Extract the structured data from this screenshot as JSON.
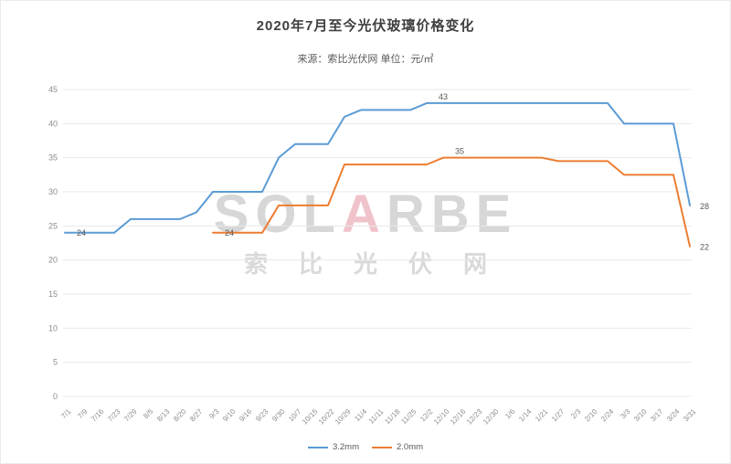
{
  "header": {
    "title": "2020年7月至今光伏玻璃价格变化",
    "subtitle": "来源：索比光伏网 单位：元/㎡"
  },
  "watermark": {
    "brand_gray_left": "SOL",
    "brand_accent": "A",
    "brand_gray_right": "RBE",
    "subbrand": "索比光伏网"
  },
  "chart_data": {
    "type": "line",
    "title": "2020年7月至今光伏玻璃价格变化",
    "source": "来源：索比光伏网",
    "unit": "元/㎡",
    "categories": [
      "7/1",
      "7/9",
      "7/16",
      "7/23",
      "7/29",
      "8/5",
      "8/13",
      "8/20",
      "8/27",
      "9/3",
      "9/10",
      "9/16",
      "9/23",
      "9/30",
      "10/7",
      "10/15",
      "10/22",
      "10/29",
      "11/4",
      "11/11",
      "11/18",
      "11/25",
      "12/2",
      "12/10",
      "12/16",
      "12/23",
      "12/30",
      "1/6",
      "1/14",
      "1/21",
      "1/27",
      "2/3",
      "2/10",
      "2/24",
      "3/3",
      "3/10",
      "3/17",
      "3/24",
      "3/31"
    ],
    "series": [
      {
        "name": "3.2mm",
        "color": "#5B9BD5",
        "values": [
          24,
          24,
          24,
          24,
          26,
          26,
          26,
          26,
          27,
          30,
          30,
          30,
          30,
          35,
          37,
          37,
          37,
          41,
          42,
          42,
          42,
          42,
          43,
          43,
          43,
          43,
          43,
          43,
          43,
          43,
          43,
          43,
          43,
          43,
          40,
          40,
          40,
          40,
          28
        ]
      },
      {
        "name": "2.0mm",
        "color": "#ED7D31",
        "values": [
          null,
          null,
          null,
          null,
          null,
          null,
          null,
          null,
          null,
          24,
          24,
          24,
          24,
          28,
          28,
          28,
          28,
          34,
          34,
          34,
          34,
          34,
          34,
          35,
          35,
          35,
          35,
          35,
          35,
          35,
          34.5,
          34.5,
          34.5,
          34.5,
          32.5,
          32.5,
          32.5,
          32.5,
          22
        ]
      }
    ],
    "ylim": [
      0,
      45
    ],
    "ytick_step": 5,
    "yticks": [
      0,
      5,
      10,
      15,
      20,
      25,
      30,
      35,
      40,
      45
    ],
    "grid": true,
    "legend_position": "bottom",
    "annotations": [
      {
        "series": 0,
        "index": 1,
        "text": "24",
        "pos": "on"
      },
      {
        "series": 1,
        "index": 10,
        "text": "24",
        "pos": "on"
      },
      {
        "series": 0,
        "index": 23,
        "text": "43",
        "pos": "above"
      },
      {
        "series": 1,
        "index": 24,
        "text": "35",
        "pos": "above"
      },
      {
        "series": 0,
        "index": 38,
        "text": "28",
        "pos": "right"
      },
      {
        "series": 1,
        "index": 38,
        "text": "22",
        "pos": "right"
      }
    ],
    "axis_text_color": "#8c8c8c",
    "grid_color": "#e8e8e8",
    "label_color": "#595959"
  }
}
